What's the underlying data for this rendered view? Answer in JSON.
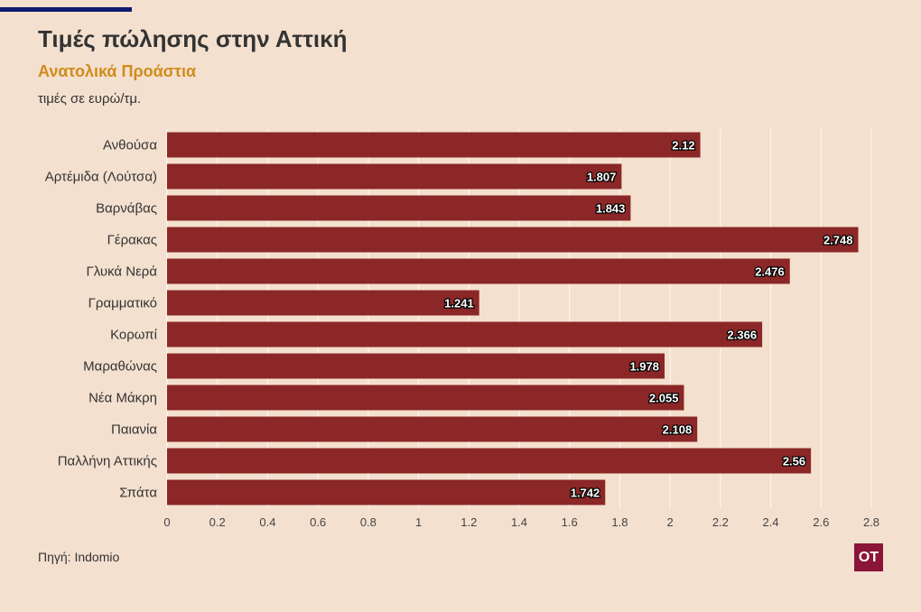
{
  "header": {
    "title": "Τιμές πώλησης στην Αττική",
    "subtitle": "Ανατολικά Προάστια",
    "unit_note": "τιμές σε ευρώ/τμ."
  },
  "footer": {
    "source": "Πηγή: Indomio",
    "logo_text": "OT"
  },
  "colors": {
    "bar": "#8b2727",
    "background": "#f4e0cf",
    "subtitle": "#d08c1c",
    "accent_bar": "#0d1b6e",
    "logo": "#8a1538"
  },
  "chart_data": {
    "type": "bar",
    "orientation": "horizontal",
    "categories": [
      "Ανθούσα",
      "Αρτέμιδα (Λούτσα)",
      "Βαρνάβας",
      "Γέρακας",
      "Γλυκά Νερά",
      "Γραμματικό",
      "Κορωπί",
      "Μαραθώνας",
      "Νέα Μάκρη",
      "Παιανία",
      "Παλλήνη Αττικής",
      "Σπάτα"
    ],
    "values": [
      2.12,
      1.807,
      1.843,
      2.748,
      2.476,
      1.241,
      2.366,
      1.978,
      2.055,
      2.108,
      2.56,
      1.742
    ],
    "value_labels": [
      "2.12",
      "1.807",
      "1.843",
      "2.748",
      "2.476",
      "1.241",
      "2.366",
      "1.978",
      "2.055",
      "2.108",
      "2.56",
      "1.742"
    ],
    "xlim": [
      0,
      2.8
    ],
    "xticks": [
      0,
      0.2,
      0.4,
      0.6,
      0.8,
      1,
      1.2,
      1.4,
      1.6,
      1.8,
      2,
      2.2,
      2.4,
      2.6,
      2.8
    ],
    "xtick_labels": [
      "0",
      "0.2",
      "0.4",
      "0.6",
      "0.8",
      "1",
      "1.2",
      "1.4",
      "1.6",
      "1.8",
      "2",
      "2.2",
      "2.4",
      "2.6",
      "2.8"
    ],
    "grid": true,
    "legend": "none"
  }
}
